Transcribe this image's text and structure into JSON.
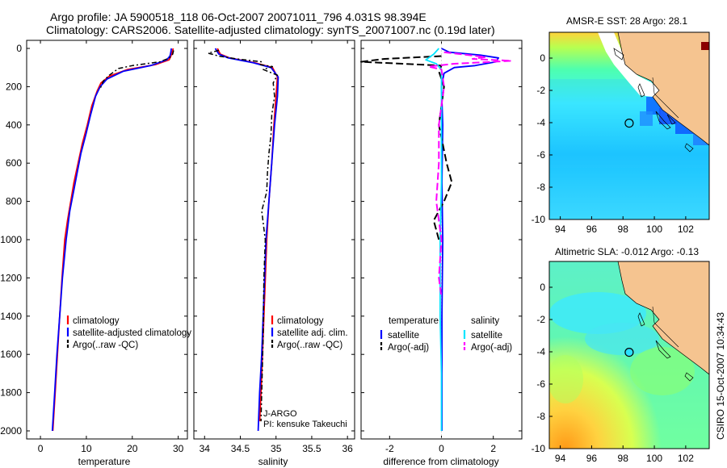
{
  "header": {
    "title_line1": "Argo profile: JA 5900518_118 06-Oct-2007 20071011_796 4.031S 98.394E",
    "title_line2": "Climatology: CARS2006. Satellite-adjusted climatology: synTS_20071007.nc (0.19d later)"
  },
  "credit": "CSIRO 15-Oct-2007 10:34:43",
  "colors": {
    "climatology": "#ff0000",
    "satellite": "#0000ff",
    "argo": "#000000",
    "satellite_salinity_diff": "#00e5ff",
    "argo_salinity_diff": "#ff00ff",
    "land": "#f5c490"
  },
  "chart_data": [
    {
      "type": "line",
      "id": "temperature",
      "xlabel": "temperature",
      "ylabel": "",
      "xlim": [
        -3,
        32
      ],
      "ylim": [
        2000,
        0
      ],
      "xticks": [
        0,
        10,
        20,
        30
      ],
      "yticks": [
        0,
        200,
        400,
        600,
        800,
        1000,
        1200,
        1400,
        1600,
        1800,
        2000
      ],
      "legend": [
        "climatology",
        "satellite-adjusted climatology",
        "Argo(..raw -QC)"
      ],
      "series": [
        {
          "name": "climatology",
          "color": "#ff0000",
          "dash": "",
          "width": 1.8,
          "points": [
            [
              28.9,
              0
            ],
            [
              28.7,
              20
            ],
            [
              28.4,
              40
            ],
            [
              28,
              60
            ],
            [
              25,
              85
            ],
            [
              19,
              110
            ],
            [
              15,
              145
            ],
            [
              13.2,
              180
            ],
            [
              12.4,
              220
            ],
            [
              11.2,
              300
            ],
            [
              10.2,
              400
            ],
            [
              9.1,
              500
            ],
            [
              8.2,
              600
            ],
            [
              7.3,
              700
            ],
            [
              6.6,
              800
            ],
            [
              5.9,
              900
            ],
            [
              5.3,
              1000
            ],
            [
              4.7,
              1200
            ],
            [
              4.2,
              1400
            ],
            [
              3.7,
              1600
            ],
            [
              3.2,
              1800
            ],
            [
              2.7,
              2000
            ]
          ]
        },
        {
          "name": "satellite-adjusted climatology",
          "color": "#0000ff",
          "dash": "",
          "width": 1.8,
          "points": [
            [
              28.5,
              0
            ],
            [
              28.4,
              20
            ],
            [
              28.2,
              40
            ],
            [
              27.5,
              60
            ],
            [
              24,
              90
            ],
            [
              18,
              120
            ],
            [
              14.5,
              160
            ],
            [
              13,
              200
            ],
            [
              12,
              250
            ],
            [
              10.9,
              350
            ],
            [
              9.9,
              450
            ],
            [
              8.8,
              550
            ],
            [
              8,
              650
            ],
            [
              7.2,
              750
            ],
            [
              6.4,
              850
            ],
            [
              5.6,
              1000
            ],
            [
              4.8,
              1200
            ],
            [
              4.2,
              1400
            ],
            [
              3.6,
              1600
            ],
            [
              3.1,
              1800
            ],
            [
              2.6,
              2000
            ]
          ]
        },
        {
          "name": "Argo(..raw -QC)",
          "color": "#000000",
          "dash": "6 3 2 3",
          "width": 1.5,
          "points": [
            [
              29,
              10
            ],
            [
              28.8,
              30
            ],
            [
              28.1,
              50
            ],
            [
              26,
              70
            ],
            [
              20,
              90
            ],
            [
              17,
              105
            ],
            [
              15,
              140
            ],
            [
              13.7,
              170
            ],
            [
              13,
              210
            ]
          ]
        }
      ]
    },
    {
      "type": "line",
      "id": "salinity",
      "xlabel": "salinity",
      "ylabel": "",
      "xlim": [
        33.85,
        36.1
      ],
      "ylim": [
        2000,
        0
      ],
      "xticks": [
        34,
        34.5,
        35,
        35.5,
        36
      ],
      "legend": [
        "climatology",
        "satellite adj. clim.",
        "Argo(..raw -QC)"
      ],
      "annotation": [
        "J-ARGO",
        "PI: kensuke Takeuchi"
      ],
      "series": [
        {
          "name": "climatology",
          "color": "#ff0000",
          "dash": "",
          "width": 1.8,
          "points": [
            [
              34.18,
              0
            ],
            [
              34.22,
              30
            ],
            [
              34.35,
              50
            ],
            [
              34.7,
              75
            ],
            [
              34.95,
              100
            ],
            [
              35.02,
              150
            ],
            [
              35,
              250
            ],
            [
              34.97,
              400
            ],
            [
              34.94,
              600
            ],
            [
              34.9,
              800
            ],
            [
              34.87,
              1000
            ],
            [
              34.84,
              1300
            ],
            [
              34.81,
              1600
            ],
            [
              34.79,
              1800
            ],
            [
              34.77,
              1950
            ]
          ]
        },
        {
          "name": "satellite adj. clim.",
          "color": "#0000ff",
          "dash": "",
          "width": 1.8,
          "points": [
            [
              34.15,
              0
            ],
            [
              34.2,
              30
            ],
            [
              34.33,
              50
            ],
            [
              34.68,
              75
            ],
            [
              34.93,
              100
            ],
            [
              35.03,
              150
            ],
            [
              35.02,
              250
            ],
            [
              34.98,
              400
            ],
            [
              34.94,
              600
            ],
            [
              34.9,
              800
            ],
            [
              34.86,
              1000
            ],
            [
              34.83,
              1300
            ],
            [
              34.8,
              1600
            ],
            [
              34.77,
              1800
            ],
            [
              34.75,
              2000
            ]
          ]
        },
        {
          "name": "Argo(..raw -QC)",
          "color": "#000000",
          "dash": "6 3 2 3",
          "width": 1.5,
          "points": [
            [
              34.2,
              10
            ],
            [
              34.05,
              25
            ],
            [
              34.2,
              40
            ],
            [
              34.45,
              55
            ],
            [
              34.8,
              70
            ],
            [
              34.78,
              85
            ],
            [
              34.95,
              95
            ],
            [
              34.82,
              110
            ],
            [
              35.02,
              140
            ],
            [
              34.96,
              180
            ],
            [
              34.98,
              250
            ],
            [
              34.94,
              350
            ],
            [
              34.93,
              450
            ],
            [
              34.9,
              550
            ],
            [
              34.88,
              650
            ],
            [
              34.87,
              750
            ],
            [
              34.8,
              850
            ],
            [
              34.85,
              1000
            ],
            [
              34.83,
              1200
            ],
            [
              34.82,
              1500
            ],
            [
              34.8,
              1800
            ],
            [
              34.79,
              1950
            ]
          ]
        }
      ]
    },
    {
      "type": "line",
      "id": "difference",
      "xlabel": "difference from climatology",
      "ylabel": "",
      "xlim": [
        -3.1,
        3.1
      ],
      "ylim": [
        2000,
        0
      ],
      "xticks": [
        -2,
        0,
        2
      ],
      "legend_groups": [
        {
          "title": "temperature",
          "entries": [
            "satellite",
            "Argo(-adj)"
          ]
        },
        {
          "title": "salinity",
          "entries": [
            "satellite",
            "Argo(-adj)"
          ]
        }
      ],
      "series": [
        {
          "name": "temperature satellite",
          "color": "#0000ff",
          "dash": "",
          "width": 1.8,
          "points": [
            [
              0,
              0
            ],
            [
              0.3,
              20
            ],
            [
              1.5,
              35
            ],
            [
              2.2,
              50
            ],
            [
              2.1,
              70
            ],
            [
              1.3,
              90
            ],
            [
              0.5,
              100
            ],
            [
              0.1,
              130
            ],
            [
              0,
              200
            ],
            [
              0.05,
              400
            ],
            [
              0.02,
              700
            ],
            [
              0.05,
              1000
            ],
            [
              0.02,
              1400
            ],
            [
              0.02,
              1700
            ],
            [
              0.02,
              2000
            ]
          ]
        },
        {
          "name": "temperature Argo(-adj)",
          "color": "#000000",
          "dash": "9 4",
          "width": 2,
          "points": [
            [
              0,
              40
            ],
            [
              -2.2,
              55
            ],
            [
              -3.1,
              70
            ],
            [
              -1.5,
              80
            ],
            [
              0,
              90
            ],
            [
              -0.1,
              120
            ],
            [
              0.1,
              200
            ],
            [
              -0.1,
              400
            ],
            [
              0.2,
              600
            ],
            [
              0.4,
              700
            ],
            [
              0.1,
              800
            ],
            [
              -0.3,
              900
            ],
            [
              -0.1,
              1000
            ]
          ]
        },
        {
          "name": "salinity satellite",
          "color": "#00e5ff",
          "dash": "",
          "width": 1.8,
          "points": [
            [
              -0.1,
              0
            ],
            [
              -0.3,
              30
            ],
            [
              -0.6,
              60
            ],
            [
              -0.2,
              80
            ],
            [
              0,
              110
            ],
            [
              0,
              200
            ],
            [
              0,
              400
            ],
            [
              0,
              700
            ],
            [
              -0.05,
              1000
            ],
            [
              -0.05,
              1400
            ],
            [
              0,
              1700
            ],
            [
              0,
              2000
            ]
          ]
        },
        {
          "name": "salinity Argo(-adj)",
          "color": "#ff00ff",
          "dash": "9 4",
          "width": 2,
          "points": [
            [
              0.1,
              20
            ],
            [
              1.7,
              45
            ],
            [
              1.2,
              55
            ],
            [
              2.7,
              65
            ],
            [
              0.5,
              80
            ],
            [
              -0.5,
              95
            ],
            [
              0,
              110
            ],
            [
              0.1,
              200
            ],
            [
              -0.1,
              400
            ],
            [
              -0.1,
              600
            ],
            [
              -0.2,
              800
            ],
            [
              0,
              1000
            ],
            [
              -0.1,
              1200
            ],
            [
              0,
              1300
            ]
          ]
        }
      ]
    },
    {
      "type": "heatmap",
      "id": "sst-map",
      "title": "AMSR-E SST: 28 Argo: 28.1",
      "xlim": [
        93.3,
        103.5
      ],
      "ylim": [
        -10,
        1.6
      ],
      "xticks": [
        94,
        96,
        98,
        100,
        102
      ],
      "yticks": [
        0,
        -2,
        -4,
        -6,
        -8,
        -10
      ],
      "float_position": [
        98.394,
        -4.031
      ]
    },
    {
      "type": "heatmap",
      "id": "sla-map",
      "title": "Altimetric SLA: -0.012 Argo: -0.13",
      "xlim": [
        93.3,
        103.5
      ],
      "ylim": [
        -10,
        1.6
      ],
      "xticks": [
        94,
        96,
        98,
        100,
        102
      ],
      "yticks": [
        0,
        -2,
        -4,
        -6,
        -8,
        -10
      ],
      "float_position": [
        98.394,
        -4.031
      ]
    }
  ]
}
